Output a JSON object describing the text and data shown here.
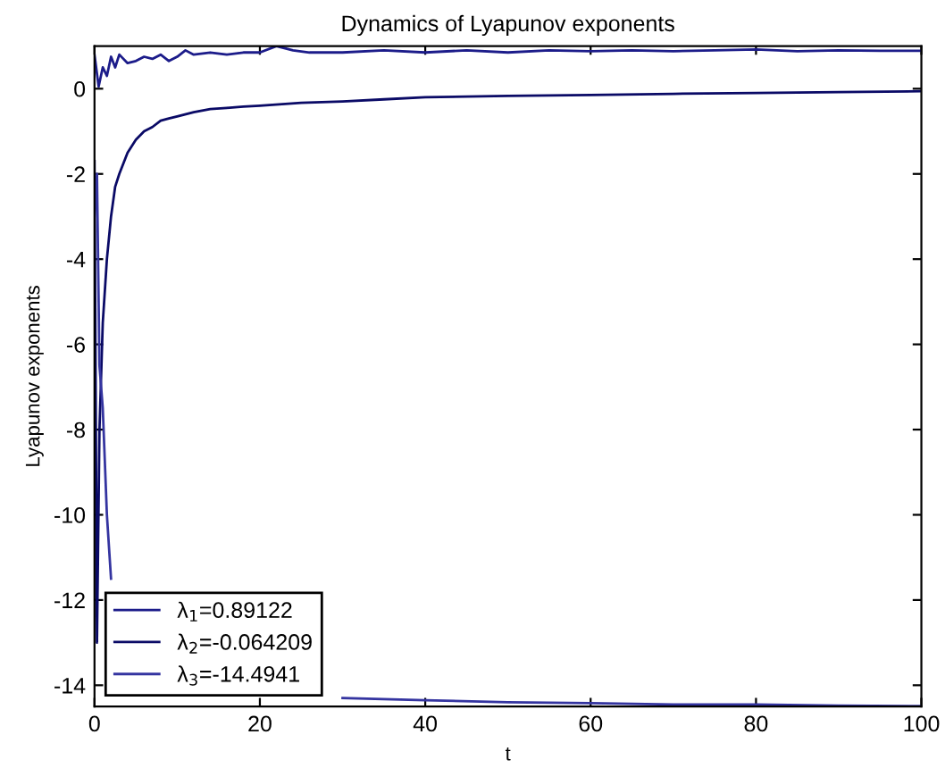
{
  "chart_data": {
    "type": "line",
    "title": "Dynamics of Lyapunov exponents",
    "xlabel": "t",
    "ylabel": "Lyapunov exponents",
    "xlim": [
      0,
      100
    ],
    "ylim": [
      -14.5,
      1
    ],
    "xticks": [
      0,
      20,
      40,
      60,
      80,
      100
    ],
    "yticks": [
      -14,
      -12,
      -10,
      -8,
      -6,
      -4,
      -2,
      0
    ],
    "grid": false,
    "legend": "bottom left",
    "line_style": "solid",
    "marker": "none",
    "series": [
      {
        "name": "λ$_{1}$=0.89122",
        "color": "#1c1c8a",
        "x": [
          0,
          0.5,
          1,
          1.5,
          2,
          2.5,
          3,
          4,
          5,
          6,
          7,
          8,
          9,
          10,
          11,
          12,
          14,
          16,
          18,
          20,
          22,
          24,
          26,
          30,
          35,
          40,
          45,
          50,
          55,
          60,
          65,
          70,
          75,
          80,
          85,
          90,
          95,
          100
        ],
        "values": [
          0.8,
          0.05,
          0.5,
          0.3,
          0.75,
          0.5,
          0.8,
          0.6,
          0.65,
          0.75,
          0.7,
          0.8,
          0.65,
          0.75,
          0.9,
          0.8,
          0.85,
          0.8,
          0.85,
          0.85,
          1.0,
          0.9,
          0.85,
          0.85,
          0.9,
          0.85,
          0.9,
          0.85,
          0.9,
          0.88,
          0.9,
          0.88,
          0.9,
          0.92,
          0.88,
          0.9,
          0.89,
          0.89
        ]
      },
      {
        "name": "λ$_{2}$=-0.064209",
        "color": "#0a0a66",
        "x": [
          0,
          0.3,
          0.6,
          1,
          1.5,
          2,
          2.5,
          3,
          4,
          5,
          6,
          7,
          8,
          9,
          10,
          12,
          14,
          16,
          18,
          20,
          25,
          30,
          35,
          40,
          50,
          60,
          70,
          80,
          90,
          100
        ],
        "values": [
          -1.7,
          -13.0,
          -8.0,
          -5.5,
          -4.0,
          -3.0,
          -2.3,
          -2.0,
          -1.5,
          -1.2,
          -1.0,
          -0.9,
          -0.75,
          -0.7,
          -0.65,
          -0.55,
          -0.48,
          -0.45,
          -0.42,
          -0.4,
          -0.33,
          -0.3,
          -0.25,
          -0.2,
          -0.17,
          -0.15,
          -0.12,
          -0.1,
          -0.08,
          -0.06
        ]
      },
      {
        "name": "λ$_{3}$=-14.4941",
        "color": "#3434a0",
        "x": [
          0,
          0.3,
          0.6,
          1,
          1.5,
          2,
          2.5,
          3,
          4,
          5,
          6,
          8,
          10,
          15,
          20,
          30,
          40,
          50,
          60,
          70,
          80,
          90,
          100
        ],
        "values": [
          -3.0,
          -2.0,
          -6.5,
          -7.5,
          -10.0,
          -11.5,
          null,
          null,
          null,
          null,
          null,
          null,
          null,
          null,
          null,
          -14.3,
          -14.35,
          -14.4,
          -14.42,
          -14.45,
          -14.45,
          -14.48,
          -14.49
        ]
      }
    ]
  }
}
